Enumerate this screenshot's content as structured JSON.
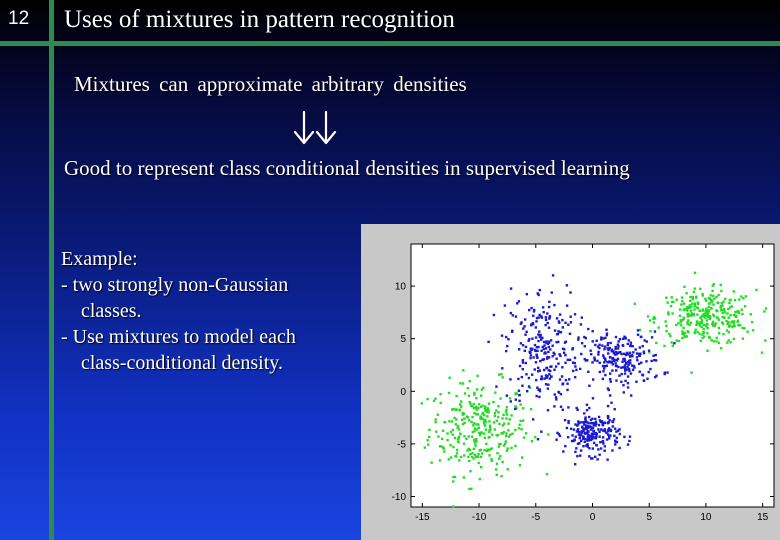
{
  "slide": {
    "number": "12",
    "title": "Uses of mixtures in pattern recognition",
    "line1": "Mixtures  can  approximate  arbitrary  densities",
    "line2": "Good  to  represent class conditional  densities in supervised learning",
    "example": [
      "Example:",
      "- two strongly non-Gaussian",
      "classes.",
      "- Use mixtures to model each",
      "class-conditional density."
    ]
  },
  "colors": {
    "accent_bar": "#2e8a4e",
    "class_green": "#22dd22",
    "class_blue": "#1a1ad0"
  },
  "chart_data": {
    "type": "scatter",
    "xlim": [
      -16,
      16
    ],
    "ylim": [
      -11,
      14
    ],
    "x_ticks": [
      -15,
      -10,
      -5,
      0,
      5,
      10,
      15
    ],
    "y_ticks": [
      -10,
      -5,
      0,
      5,
      10
    ],
    "x_tick_labels": [
      "-15",
      "-10",
      "-5",
      "0",
      "5",
      "10",
      "15"
    ],
    "y_tick_labels": [
      "-10",
      "-5",
      "0",
      "5",
      "10"
    ],
    "grid": false,
    "series": [
      {
        "color": "green",
        "clusters": [
          {
            "center": [
              -10,
              -3.5
            ],
            "spread": [
              2.2,
              2.2
            ],
            "count": 300
          },
          {
            "center": [
              10,
              7
            ],
            "spread": [
              2.2,
              1.3
            ],
            "count": 300
          }
        ]
      },
      {
        "color": "blue",
        "clusters": [
          {
            "center": [
              -4.5,
              4
            ],
            "spread": [
              1.6,
              3.0
            ],
            "count": 250
          },
          {
            "center": [
              2.5,
              3
            ],
            "spread": [
              1.8,
              1.3
            ],
            "count": 220
          },
          {
            "center": [
              0,
              -4
            ],
            "spread": [
              1.2,
              1.0
            ],
            "count": 220
          }
        ]
      }
    ]
  }
}
